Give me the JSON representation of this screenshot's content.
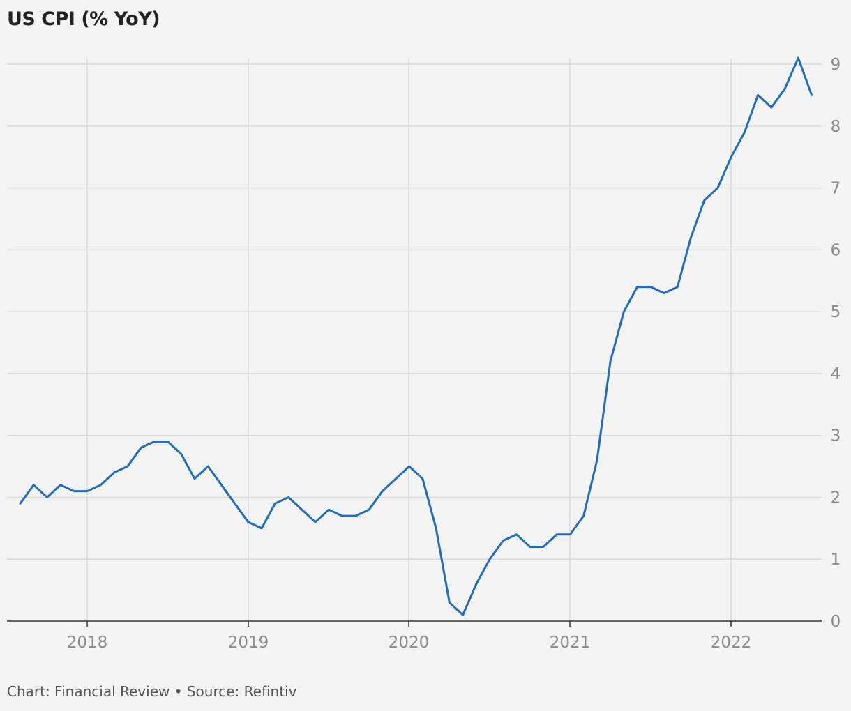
{
  "title": "US CPI (% YoY)",
  "footer": "Chart: Financial Review • Source: Refintiv",
  "colors": {
    "line": "#1f6cc4",
    "background": "#f4f4f4"
  },
  "chart_data": {
    "type": "line",
    "title": "US CPI (% YoY)",
    "xlabel": "",
    "ylabel": "",
    "ylim": [
      0,
      9
    ],
    "y_ticks": [
      0,
      1,
      2,
      3,
      4,
      5,
      6,
      7,
      8,
      9
    ],
    "x_ticks": [
      "2018",
      "2019",
      "2020",
      "2021",
      "2022"
    ],
    "grid": true,
    "y_axis_position": "right",
    "series": [
      {
        "start": "2017-08",
        "frequency": "monthly",
        "values": [
          1.9,
          2.2,
          2.0,
          2.2,
          2.1,
          2.1,
          2.2,
          2.4,
          2.5,
          2.8,
          2.9,
          2.9,
          2.7,
          2.3,
          2.5,
          2.2,
          1.9,
          1.6,
          1.5,
          1.9,
          2.0,
          1.8,
          1.6,
          1.8,
          1.7,
          1.7,
          1.8,
          2.1,
          2.3,
          2.5,
          2.3,
          1.5,
          0.3,
          0.1,
          0.6,
          1.0,
          1.3,
          1.4,
          1.2,
          1.2,
          1.4,
          1.4,
          1.7,
          2.6,
          4.2,
          5.0,
          5.4,
          5.4,
          5.3,
          5.4,
          6.2,
          6.8,
          7.0,
          7.5,
          7.9,
          8.5,
          8.3,
          8.6,
          9.1,
          8.5
        ]
      }
    ]
  }
}
